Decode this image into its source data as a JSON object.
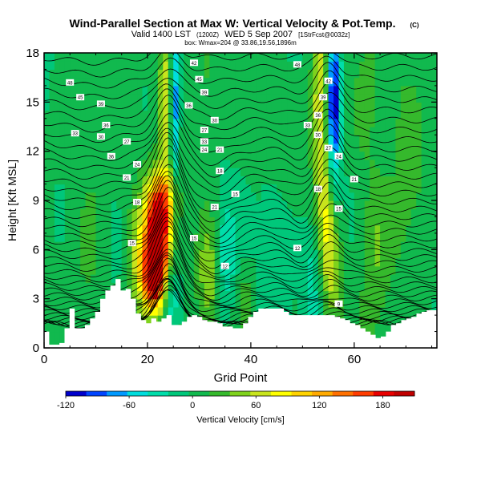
{
  "chart_data": {
    "type": "heatmap",
    "title": "Wind-Parallel Section at Max W: Vertical Velocity & Pot.Temp.",
    "title_mark": "(C)",
    "subtitle_prefix": "Valid 1400 LST",
    "subtitle_run": "(1200Z)",
    "subtitle_date": "WED 5 Sep 2007",
    "subtitle_model": "[1StrFcst@0032z]",
    "subtitle_line3": "box: Wmax=204 @ 33.86,19.56,1896m",
    "xlabel": "Grid Point",
    "ylabel": "Height [Kft MSL]",
    "xlim": [
      0,
      76
    ],
    "ylim": [
      0,
      18
    ],
    "x_ticks": [
      0,
      20,
      40,
      60
    ],
    "y_ticks": [
      0,
      3,
      6,
      9,
      12,
      15,
      18
    ],
    "x_tick_labels": [
      "0",
      "20",
      "40",
      "60"
    ],
    "y_tick_labels": [
      "0",
      "3",
      "6",
      "9",
      "12",
      "15",
      "18"
    ],
    "colorbar": {
      "label": "Vertical Velocity [cm/s]",
      "range": [
        -120,
        210
      ],
      "tick_values": [
        -120,
        -60,
        0,
        60,
        120,
        180
      ],
      "tick_labels": [
        "-120",
        "-60",
        "0",
        "60",
        "120",
        "180"
      ],
      "colors": [
        "#0000cc",
        "#0044ff",
        "#0099ff",
        "#00dddd",
        "#00ddaa",
        "#00c77a",
        "#11b94e",
        "#35b92c",
        "#7fd21c",
        "#c8e41c",
        "#ffff00",
        "#ffd300",
        "#ffaa00",
        "#ff7000",
        "#ff3c00",
        "#e80000",
        "#c00000"
      ]
    },
    "max_w_cm_s": 204,
    "max_w_location": "33.86,19.56,1896m",
    "max_w_column": 22,
    "max_w_height_kft": 6.2,
    "terrain_height_kft": [
      1,
      0.2,
      0.2,
      0.3,
      1.2,
      2.4,
      1.2,
      1.2,
      1.4,
      1.8,
      2.2,
      3,
      3.5,
      3.8,
      4.2,
      3.5,
      3.6,
      3,
      2.1,
      1.7,
      1.5,
      1.8,
      1.6,
      1.8,
      2,
      1.4,
      1.4,
      1.6,
      1.9,
      2,
      1.9,
      1.7,
      1.6,
      1.6,
      1.5,
      1.3,
      1.3,
      1.2,
      1.2,
      1.5,
      1.9,
      2.2,
      2.4,
      2.4,
      2.4,
      2.4,
      2.4,
      2.2,
      2,
      2,
      2,
      2,
      2,
      2,
      2,
      2,
      2,
      1.9,
      1.8,
      1.7,
      1.5,
      1.4,
      1.2,
      1,
      0.8,
      0.6,
      0.7,
      1,
      1.4,
      1.5,
      1.7,
      1.8,
      1.9,
      2.1,
      2.2,
      2.3,
      2.3
    ],
    "w_features": [
      {
        "name": "deep-updraft-core",
        "x": 22,
        "z": 6.2,
        "sigma_x": 1.6,
        "sigma_z": 2.2,
        "w": 204
      },
      {
        "name": "updraft-lower",
        "x": 21,
        "z": 4,
        "sigma_x": 1.6,
        "sigma_z": 1.5,
        "w": 110
      },
      {
        "name": "updraft-upper",
        "x": 23,
        "z": 9,
        "sigma_x": 2,
        "sigma_z": 1.6,
        "w": 95
      },
      {
        "name": "updraft-flank",
        "x": 18.5,
        "z": 5.5,
        "sigma_x": 1.8,
        "sigma_z": 2.5,
        "w": 60
      },
      {
        "name": "upper-updraft-left",
        "x": 24,
        "z": 15.5,
        "sigma_x": 1.3,
        "sigma_z": 3,
        "w": 85
      },
      {
        "name": "upper-updraft-right",
        "x": 53.5,
        "z": 15,
        "sigma_x": 1.3,
        "sigma_z": 3.5,
        "w": 85
      },
      {
        "name": "upper-downdraft-left",
        "x": 25.2,
        "z": 15,
        "sigma_x": 0.7,
        "sigma_z": 3.5,
        "w": -120
      },
      {
        "name": "upper-downdraft-right",
        "x": 56,
        "z": 15,
        "sigma_x": 0.9,
        "sigma_z": 3.5,
        "w": -120
      },
      {
        "name": "lower-downdraft",
        "x": 24.5,
        "z": 3,
        "sigma_x": 1.3,
        "sigma_z": 1.6,
        "w": -50
      },
      {
        "name": "low-updraft-mid",
        "x": 32,
        "z": 4.5,
        "sigma_x": 1.5,
        "sigma_z": 2.5,
        "w": 50
      },
      {
        "name": "mid-downdraft",
        "x": 35,
        "z": 5,
        "sigma_x": 1.5,
        "sigma_z": 2.5,
        "w": -40
      },
      {
        "name": "low-updraft-mid2",
        "x": 39,
        "z": 3,
        "sigma_x": 1.5,
        "sigma_z": 1.5,
        "w": 30
      },
      {
        "name": "mid-downdraft2",
        "x": 44,
        "z": 6,
        "sigma_x": 2,
        "sigma_z": 3,
        "w": -20
      },
      {
        "name": "mid-updraft-right",
        "x": 54.5,
        "z": 8,
        "sigma_x": 1.2,
        "sigma_z": 3,
        "w": 55
      },
      {
        "name": "low-updraft-right",
        "x": 56,
        "z": 4.5,
        "sigma_x": 1.2,
        "sigma_z": 2.5,
        "w": 45
      },
      {
        "name": "low-downdraft-right",
        "x": 52,
        "z": 4,
        "sigma_x": 1.4,
        "sigma_z": 3,
        "w": -35
      },
      {
        "name": "right-updraft",
        "x": 64,
        "z": 6,
        "sigma_x": 2,
        "sigma_z": 4,
        "w": 35
      },
      {
        "name": "far-right-updraft",
        "x": 70,
        "z": 8,
        "sigma_x": 2.5,
        "sigma_z": 5,
        "w": 25
      },
      {
        "name": "left-updraft",
        "x": 9,
        "z": 8,
        "sigma_x": 2.5,
        "sigma_z": 5,
        "w": 20
      },
      {
        "name": "upper-mid-updraft",
        "x": 31,
        "z": 15,
        "sigma_x": 2,
        "sigma_z": 3,
        "w": 25
      },
      {
        "name": "upper-right-updraft",
        "x": 62,
        "z": 15,
        "sigma_x": 2,
        "sigma_z": 3,
        "w": 20
      }
    ],
    "theta_contours": {
      "base_height_kft": 1.5,
      "level_count": 44,
      "stable_layer_bottom_kft": 10.5,
      "stable_layer_top_kft": 18,
      "perturbations": [
        {
          "x": 24,
          "z": 7,
          "sigma_x": 2.2,
          "sigma_z": 7,
          "dz": 3
        },
        {
          "x": 55,
          "z": 12,
          "sigma_x": 2.2,
          "sigma_z": 5,
          "dz": 2
        },
        {
          "x": 33,
          "z": 9,
          "sigma_x": 3,
          "sigma_z": 4,
          "dz": -1.2
        },
        {
          "x": 50,
          "z": 9,
          "sigma_x": 2.5,
          "sigma_z": 4,
          "dz": -0.8
        },
        {
          "x": 10,
          "z": 12,
          "sigma_x": 6,
          "sigma_z": 6,
          "dz": -0.6
        }
      ]
    },
    "contour_labels": [
      {
        "text": "48",
        "x": 5,
        "z": 16.2
      },
      {
        "text": "45",
        "x": 7,
        "z": 15.3
      },
      {
        "text": "39",
        "x": 11,
        "z": 14.9
      },
      {
        "text": "36",
        "x": 12,
        "z": 13.6
      },
      {
        "text": "33",
        "x": 6,
        "z": 13.1
      },
      {
        "text": "30",
        "x": 11,
        "z": 12.9
      },
      {
        "text": "27",
        "x": 16,
        "z": 12.6
      },
      {
        "text": "36",
        "x": 13,
        "z": 11.7
      },
      {
        "text": "24",
        "x": 18,
        "z": 11.2
      },
      {
        "text": "21",
        "x": 16,
        "z": 10.4
      },
      {
        "text": "18",
        "x": 18,
        "z": 8.9
      },
      {
        "text": "15",
        "x": 17,
        "z": 6.4
      },
      {
        "text": "42",
        "x": 29,
        "z": 17.4
      },
      {
        "text": "45",
        "x": 30,
        "z": 16.4
      },
      {
        "text": "39",
        "x": 31,
        "z": 15.6
      },
      {
        "text": "36",
        "x": 28,
        "z": 14.8
      },
      {
        "text": "30",
        "x": 33,
        "z": 13.9
      },
      {
        "text": "27",
        "x": 31,
        "z": 13.3
      },
      {
        "text": "33",
        "x": 31,
        "z": 12.6
      },
      {
        "text": "24",
        "x": 31,
        "z": 12.1
      },
      {
        "text": "21",
        "x": 34,
        "z": 12.1
      },
      {
        "text": "18",
        "x": 34,
        "z": 10.8
      },
      {
        "text": "15",
        "x": 37,
        "z": 9.4
      },
      {
        "text": "21",
        "x": 33,
        "z": 8.6
      },
      {
        "text": "15",
        "x": 29,
        "z": 6.7
      },
      {
        "text": "12",
        "x": 35,
        "z": 5
      },
      {
        "text": "48",
        "x": 49,
        "z": 17.3
      },
      {
        "text": "42",
        "x": 55,
        "z": 16.3
      },
      {
        "text": "39",
        "x": 54,
        "z": 15.3
      },
      {
        "text": "36",
        "x": 53,
        "z": 14.2
      },
      {
        "text": "33",
        "x": 51,
        "z": 13.6
      },
      {
        "text": "30",
        "x": 53,
        "z": 13
      },
      {
        "text": "27",
        "x": 55,
        "z": 12.2
      },
      {
        "text": "24",
        "x": 57,
        "z": 11.7
      },
      {
        "text": "21",
        "x": 60,
        "z": 10.3
      },
      {
        "text": "18",
        "x": 53,
        "z": 9.7
      },
      {
        "text": "15",
        "x": 57,
        "z": 8.5
      },
      {
        "text": "12",
        "x": 49,
        "z": 6.1
      },
      {
        "text": "9",
        "x": 57,
        "z": 2.7
      }
    ]
  }
}
